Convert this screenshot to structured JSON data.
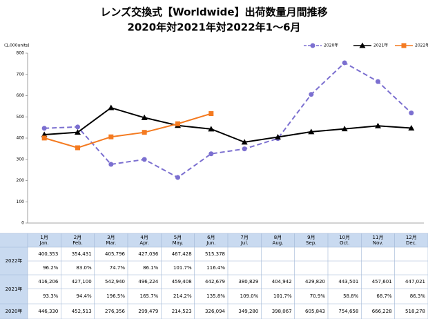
{
  "chart_data": {
    "type": "line",
    "title": "レンズ交換式【Worldwide】出荷数量月間推移",
    "subtitle": "2020年対2021年対2022年1～6月",
    "y_axis_label": "(1,000units)",
    "ylim": [
      0,
      800
    ],
    "yticks": [
      0,
      100,
      200,
      300,
      400,
      500,
      600,
      700,
      800
    ],
    "grid": false,
    "legend": "top-right",
    "series": [
      {
        "name": "2020年",
        "color": "#7b6fd0",
        "dash": true,
        "marker": "circle",
        "values": [
          446.33,
          452.513,
          276.356,
          299.479,
          214.523,
          326.094,
          349.28,
          398.067,
          605.843,
          754.658,
          666.228,
          518.278
        ]
      },
      {
        "name": "2021年",
        "color": "#000000",
        "dash": false,
        "marker": "triangle",
        "values": [
          416.206,
          427.1,
          542.94,
          496.224,
          459.408,
          442.679,
          380.829,
          404.942,
          429.82,
          443.501,
          457.601,
          447.021
        ]
      },
      {
        "name": "2022年",
        "color": "#f47a20",
        "dash": false,
        "marker": "square",
        "values": [
          400.353,
          354.431,
          405.796,
          427.036,
          467.428,
          515.378
        ]
      }
    ]
  },
  "table": {
    "columns": [
      {
        "ja": "1月",
        "en": "Jan."
      },
      {
        "ja": "2月",
        "en": "Feb."
      },
      {
        "ja": "3月",
        "en": "Mar."
      },
      {
        "ja": "4月",
        "en": "Apr."
      },
      {
        "ja": "5月",
        "en": "May."
      },
      {
        "ja": "6月",
        "en": "Jun."
      },
      {
        "ja": "7月",
        "en": "Jul."
      },
      {
        "ja": "8月",
        "en": "Aug."
      },
      {
        "ja": "9月",
        "en": "Sep."
      },
      {
        "ja": "10月",
        "en": "Oct."
      },
      {
        "ja": "11月",
        "en": "Nov."
      },
      {
        "ja": "12月",
        "en": "Dec."
      }
    ],
    "rows": [
      {
        "label": "2022年",
        "values": [
          "400,353",
          "354,431",
          "405,796",
          "427,036",
          "467,428",
          "515,378"
        ],
        "ratios": [
          "96.2%",
          "83.0%",
          "74.7%",
          "86.1%",
          "101.7%",
          "116.4%"
        ]
      },
      {
        "label": "2021年",
        "values": [
          "416,206",
          "427,100",
          "542,940",
          "496,224",
          "459,408",
          "442,679",
          "380,829",
          "404,942",
          "429,820",
          "443,501",
          "457,601",
          "447,021"
        ],
        "ratios": [
          "93.3%",
          "94.4%",
          "196.5%",
          "165.7%",
          "214.2%",
          "135.8%",
          "109.0%",
          "101.7%",
          "70.9%",
          "58.8%",
          "68.7%",
          "86.3%"
        ]
      },
      {
        "label": "2020年",
        "values": [
          "446,330",
          "452,513",
          "276,356",
          "299,479",
          "214,523",
          "326,094",
          "349,280",
          "398,067",
          "605,843",
          "754,658",
          "666,228",
          "518,278"
        ]
      }
    ]
  }
}
